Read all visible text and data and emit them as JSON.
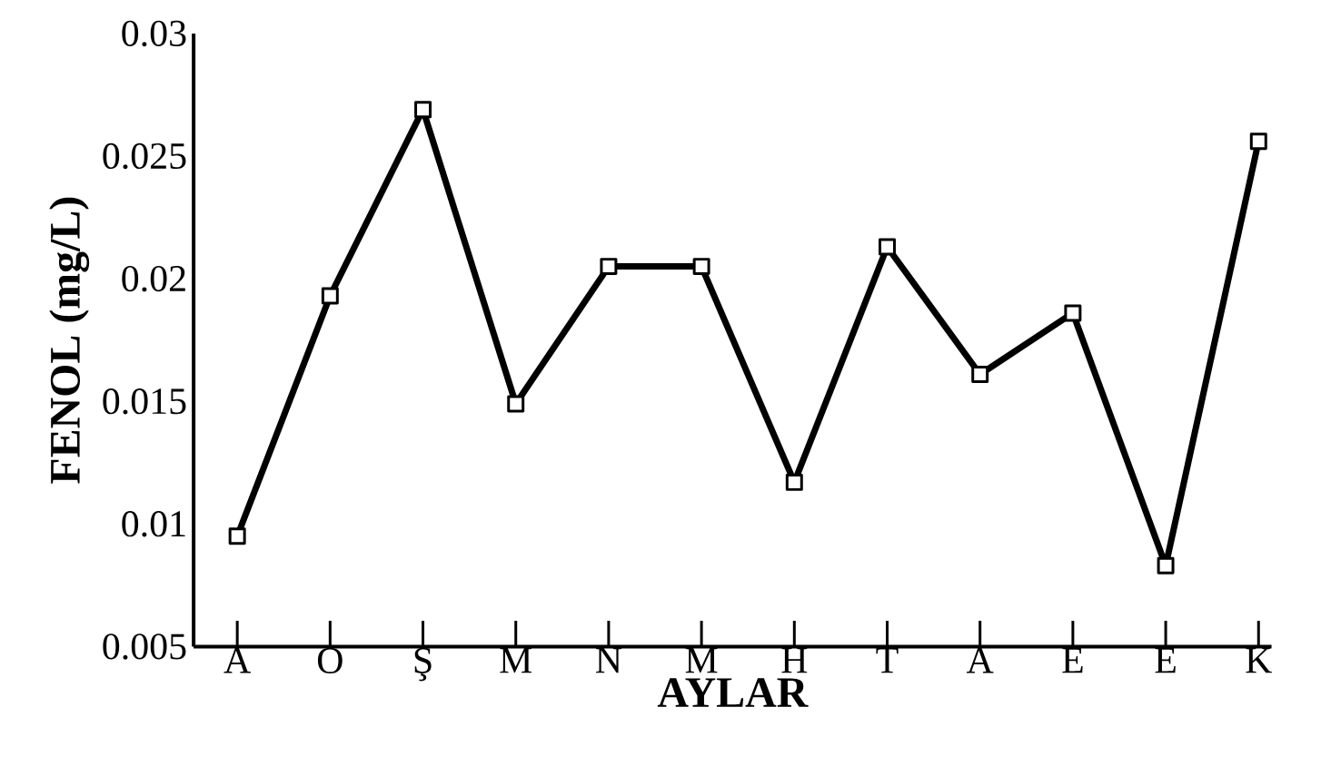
{
  "chart_data": {
    "type": "line",
    "xlabel": "AYLAR",
    "ylabel": "FENOL (mg/L)",
    "categories": [
      "A",
      "O",
      "Ş",
      "M",
      "N",
      "M",
      "H",
      "T",
      "A",
      "E",
      "E",
      "K"
    ],
    "values": [
      0.0095,
      0.0193,
      0.0269,
      0.0149,
      0.0205,
      0.0205,
      0.0117,
      0.0213,
      0.0161,
      0.0186,
      0.0083,
      0.0256
    ],
    "color": "#000000",
    "marker": "square",
    "line_style": "solid",
    "ylim": [
      0.005,
      0.03
    ],
    "yticks": [
      0.005,
      0.01,
      0.015,
      0.02,
      0.025,
      0.03
    ]
  }
}
